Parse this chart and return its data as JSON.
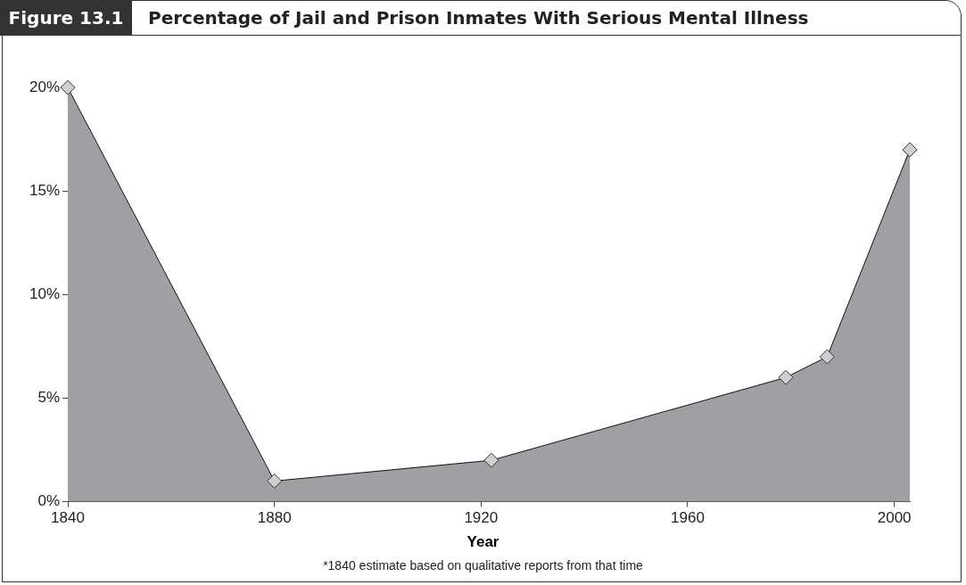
{
  "chart_data": {
    "type": "area",
    "title": "Percentage of Jail and Prison Inmates With Serious Mental Illness",
    "xlabel": "Year",
    "annotations": [
      "Figure 13.1",
      "*1840 estimate based on qualitative reports from that time"
    ],
    "x": [
      1840,
      1880,
      1922,
      1979,
      1987,
      2003
    ],
    "series": [
      {
        "color": "#a0a0a4",
        "values": [
          20,
          1,
          2,
          6,
          7,
          17
        ]
      }
    ],
    "xlim": [
      1840,
      2003
    ],
    "xticks": [
      1840,
      1880,
      1920,
      1960,
      2000
    ],
    "ylim": [
      0,
      20
    ],
    "yticks": [
      {
        "value": 0,
        "label": "0%"
      },
      {
        "value": 5,
        "label": "5%"
      },
      {
        "value": 10,
        "label": "10%"
      },
      {
        "value": 15,
        "label": "15%"
      },
      {
        "value": 20,
        "label": "20%"
      }
    ],
    "grid": false,
    "legend": false,
    "marker": "diamond",
    "line_style": "solid"
  }
}
